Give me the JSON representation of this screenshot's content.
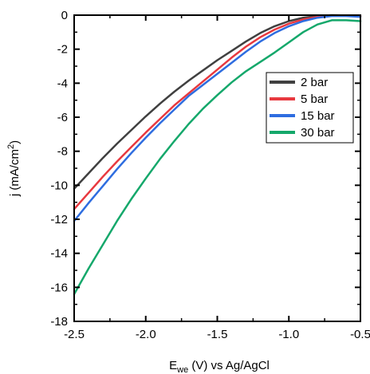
{
  "chart_data": {
    "type": "line",
    "xlabel": "E",
    "xlabel_sub": "we",
    "xlabel_rest": " (V) vs Ag/AgCl",
    "ylabel": "j (mA/cm",
    "ylabel_sup": "2",
    "ylabel_end": ")",
    "xlim": [
      -2.5,
      -0.5
    ],
    "ylim": [
      -18,
      0
    ],
    "x_ticks": [
      -2.5,
      -2.0,
      -1.5,
      -1.0,
      -0.5
    ],
    "x_tick_labels": [
      "-2.5",
      "-2.0",
      "-1.5",
      "-1.0",
      "-0.5"
    ],
    "y_ticks": [
      0,
      -2,
      -4,
      -6,
      -8,
      -10,
      -12,
      -14,
      -16,
      -18
    ],
    "y_tick_labels": [
      "0",
      "-2",
      "-4",
      "-6",
      "-8",
      "-10",
      "-12",
      "-14",
      "-16",
      "-18"
    ],
    "grid": false,
    "legend_position": "top-right",
    "series": [
      {
        "name": "2 bar",
        "color": "#404040",
        "x": [
          -2.5,
          -2.4,
          -2.3,
          -2.2,
          -2.1,
          -2.0,
          -1.9,
          -1.8,
          -1.7,
          -1.6,
          -1.5,
          -1.4,
          -1.3,
          -1.2,
          -1.1,
          -1.0,
          -0.9,
          -0.8,
          -0.7,
          -0.6,
          -0.5
        ],
        "y": [
          -10.2,
          -9.3,
          -8.4,
          -7.55,
          -6.75,
          -5.95,
          -5.2,
          -4.5,
          -3.85,
          -3.25,
          -2.65,
          -2.1,
          -1.55,
          -1.05,
          -0.65,
          -0.35,
          -0.15,
          -0.05,
          0.0,
          -0.02,
          -0.05
        ]
      },
      {
        "name": "5 bar",
        "color": "#e8393f",
        "x": [
          -2.5,
          -2.4,
          -2.3,
          -2.2,
          -2.1,
          -2.0,
          -1.9,
          -1.8,
          -1.7,
          -1.6,
          -1.5,
          -1.4,
          -1.3,
          -1.2,
          -1.1,
          -1.0,
          -0.9,
          -0.8,
          -0.7,
          -0.6,
          -0.5
        ],
        "y": [
          -11.4,
          -10.45,
          -9.5,
          -8.6,
          -7.75,
          -6.9,
          -6.1,
          -5.3,
          -4.6,
          -3.9,
          -3.2,
          -2.5,
          -1.85,
          -1.3,
          -0.85,
          -0.5,
          -0.25,
          -0.1,
          -0.03,
          -0.02,
          -0.05
        ]
      },
      {
        "name": "15 bar",
        "color": "#2e6de0",
        "x": [
          -2.5,
          -2.4,
          -2.3,
          -2.2,
          -2.1,
          -2.0,
          -1.9,
          -1.8,
          -1.7,
          -1.6,
          -1.5,
          -1.4,
          -1.3,
          -1.2,
          -1.1,
          -1.0,
          -0.9,
          -0.8,
          -0.7,
          -0.6,
          -0.5
        ],
        "y": [
          -12.1,
          -11.05,
          -10.05,
          -9.05,
          -8.1,
          -7.2,
          -6.35,
          -5.55,
          -4.75,
          -4.1,
          -3.45,
          -2.8,
          -2.15,
          -1.55,
          -1.05,
          -0.65,
          -0.35,
          -0.15,
          -0.05,
          -0.05,
          -0.1
        ]
      },
      {
        "name": "30 bar",
        "color": "#15a86b",
        "x": [
          -2.5,
          -2.4,
          -2.3,
          -2.2,
          -2.1,
          -2.0,
          -1.9,
          -1.8,
          -1.7,
          -1.6,
          -1.5,
          -1.4,
          -1.3,
          -1.2,
          -1.1,
          -1.0,
          -0.9,
          -0.8,
          -0.7,
          -0.6,
          -0.5
        ],
        "y": [
          -16.4,
          -14.9,
          -13.5,
          -12.1,
          -10.8,
          -9.6,
          -8.45,
          -7.4,
          -6.4,
          -5.5,
          -4.7,
          -3.95,
          -3.3,
          -2.75,
          -2.2,
          -1.6,
          -1.0,
          -0.55,
          -0.3,
          -0.3,
          -0.35
        ]
      }
    ]
  }
}
